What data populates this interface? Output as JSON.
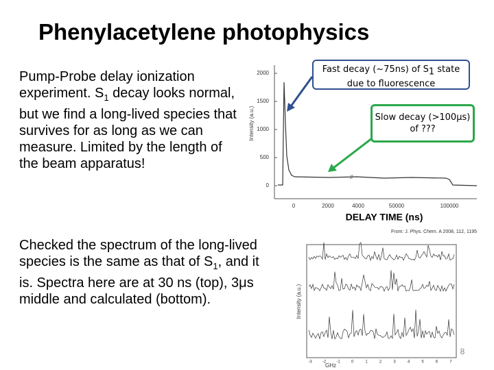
{
  "slide": {
    "title": "Phenylacetylene photophysics",
    "paragraph_1": [
      "Pump-Probe delay ionization experiment.  S",
      "1",
      " decay looks normal, but  we find a long-lived species that survives for as long as we can measure. Limited by the length of the beam apparatus!"
    ],
    "paragraph_2": [
      "Checked the spectrum of the long-lived species is the same as that of S",
      "1",
      ", and it is.  Spectra here are at 30 ns (top), 3μs middle and calculated (bottom)."
    ],
    "callout_fast": [
      "Fast decay (~75ns)  of  S",
      "1",
      " state due to fluorescence"
    ],
    "callout_slow": [
      "Slow decay (>100μs)",
      "of  ???"
    ],
    "decay_plot": {
      "y_label": "Intensity (a.u.)",
      "x_label": "DELAY TIME (ns)",
      "yticks": [
        2000,
        1500,
        1000,
        500,
        0
      ],
      "xticks": [
        0,
        2000,
        4000,
        50000,
        100000
      ]
    },
    "citation": "From: J. Phys. Chem. A 2008, 112, 1195",
    "spectra_plot": {
      "y_label": "Intensity (a.u.)",
      "x_label": "GHz",
      "xticks": [
        -3,
        -2,
        -1,
        0,
        1,
        2,
        3,
        4,
        5,
        6,
        7
      ]
    },
    "page_number": "8"
  }
}
